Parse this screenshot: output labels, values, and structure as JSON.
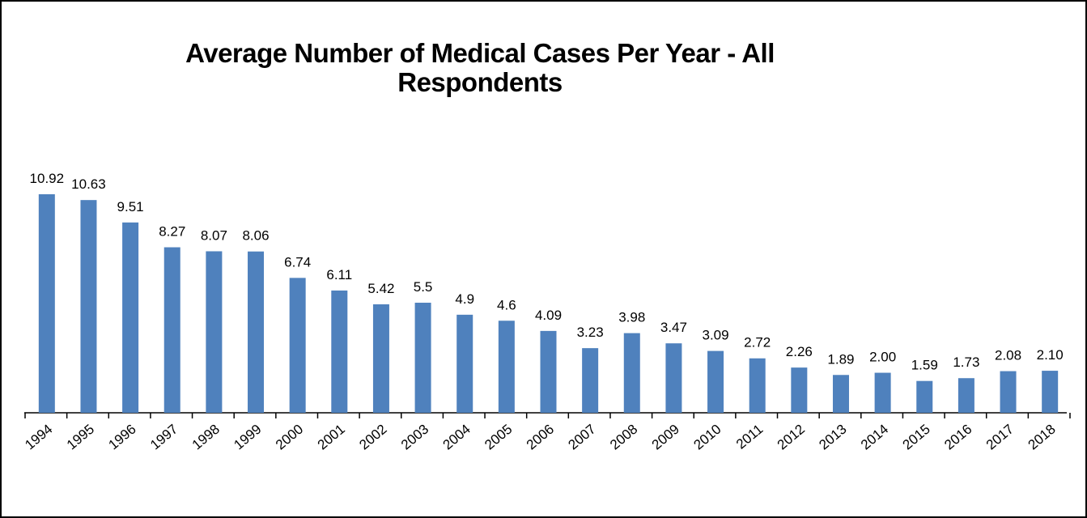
{
  "chart_data": {
    "type": "bar",
    "title": "Average Number of Medical Cases Per Year - All Respondents",
    "categories": [
      "1994",
      "1995",
      "1996",
      "1997",
      "1998",
      "1999",
      "2000",
      "2001",
      "2002",
      "2003",
      "2004",
      "2005",
      "2006",
      "2007",
      "2008",
      "2009",
      "2010",
      "2011",
      "2012",
      "2013",
      "2014",
      "2015",
      "2016",
      "2017",
      "2018"
    ],
    "values": [
      10.92,
      10.63,
      9.51,
      8.27,
      8.07,
      8.06,
      6.74,
      6.11,
      5.42,
      5.5,
      4.9,
      4.6,
      4.09,
      3.23,
      3.98,
      3.47,
      3.09,
      2.72,
      2.26,
      1.89,
      2.0,
      1.59,
      1.73,
      2.08,
      2.1
    ],
    "value_labels": [
      "10.92",
      "10.63",
      "9.51",
      "8.27",
      "8.07",
      "8.06",
      "6.74",
      "6.11",
      "5.42",
      "5.5",
      "4.9",
      "4.6",
      "4.09",
      "3.23",
      "3.98",
      "3.47",
      "3.09",
      "2.72",
      "2.26",
      "1.89",
      "2.00",
      "1.59",
      "1.73",
      "2.08",
      "2.10"
    ],
    "color": "#4f81bd"
  }
}
